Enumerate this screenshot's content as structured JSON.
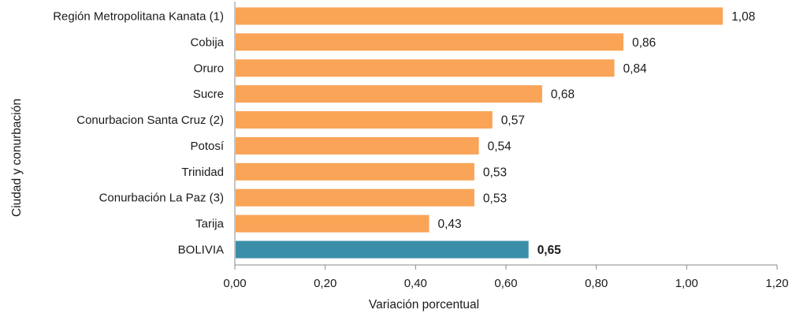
{
  "chart_data": {
    "type": "bar",
    "orientation": "horizontal",
    "categories": [
      "Región Metropolitana Kanata (1)",
      "Cobija",
      "Oruro",
      "Sucre",
      "Conurbacion Santa Cruz (2)",
      "Potosí",
      "Trinidad",
      "Conurbación La Paz (3)",
      "Tarija",
      "BOLIVIA"
    ],
    "values": [
      1.08,
      0.86,
      0.84,
      0.68,
      0.57,
      0.54,
      0.53,
      0.53,
      0.43,
      0.65
    ],
    "value_labels": [
      "1,08",
      "0,86",
      "0,84",
      "0,68",
      "0,57",
      "0,54",
      "0,53",
      "0,53",
      "0,43",
      "0,65"
    ],
    "highlight_index": 9,
    "colors": {
      "bar": "#f9a457",
      "highlight": "#3a8ea7"
    },
    "xlabel": "Variación porcentual",
    "ylabel": "Ciudad y conurbación",
    "xlim": [
      0,
      1.2
    ],
    "x_ticks": [
      0,
      0.2,
      0.4,
      0.6,
      0.8,
      1.0,
      1.2
    ],
    "x_tick_labels": [
      "0,00",
      "0,20",
      "0,40",
      "0,60",
      "0,80",
      "1,00",
      "1,20"
    ],
    "grid": false,
    "legend": "none"
  }
}
